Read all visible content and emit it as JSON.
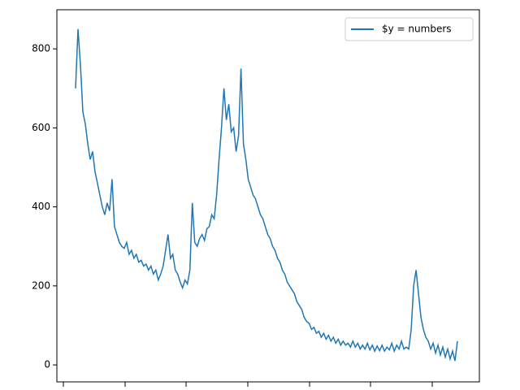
{
  "chart_data": {
    "type": "line",
    "series": [
      {
        "name": "$y = numbers",
        "color": "#1f77b4",
        "values": [
          700,
          850,
          760,
          640,
          610,
          560,
          520,
          540,
          490,
          460,
          430,
          400,
          380,
          410,
          390,
          470,
          350,
          330,
          310,
          300,
          295,
          310,
          280,
          290,
          270,
          280,
          260,
          265,
          250,
          255,
          240,
          250,
          230,
          240,
          215,
          230,
          250,
          290,
          330,
          270,
          280,
          240,
          230,
          210,
          195,
          215,
          205,
          240,
          410,
          310,
          300,
          320,
          330,
          315,
          345,
          350,
          380,
          370,
          430,
          520,
          600,
          700,
          620,
          660,
          590,
          600,
          540,
          580,
          750,
          560,
          520,
          470,
          450,
          430,
          420,
          400,
          380,
          370,
          350,
          330,
          320,
          300,
          290,
          270,
          260,
          240,
          230,
          210,
          200,
          190,
          180,
          160,
          150,
          140,
          120,
          110,
          105,
          90,
          95,
          80,
          85,
          70,
          80,
          65,
          75,
          60,
          70,
          55,
          65,
          50,
          60,
          50,
          55,
          45,
          60,
          45,
          55,
          40,
          50,
          40,
          55,
          38,
          50,
          35,
          48,
          36,
          50,
          35,
          45,
          38,
          55,
          35,
          50,
          40,
          60,
          40,
          45,
          40,
          90,
          200,
          240,
          180,
          120,
          90,
          70,
          60,
          40,
          55,
          30,
          50,
          25,
          45,
          20,
          40,
          15,
          35,
          10,
          60
        ]
      }
    ],
    "ylim": [
      -43,
      899
    ],
    "yticks": [
      0,
      200,
      400,
      600,
      800
    ],
    "legend": "upper right"
  }
}
